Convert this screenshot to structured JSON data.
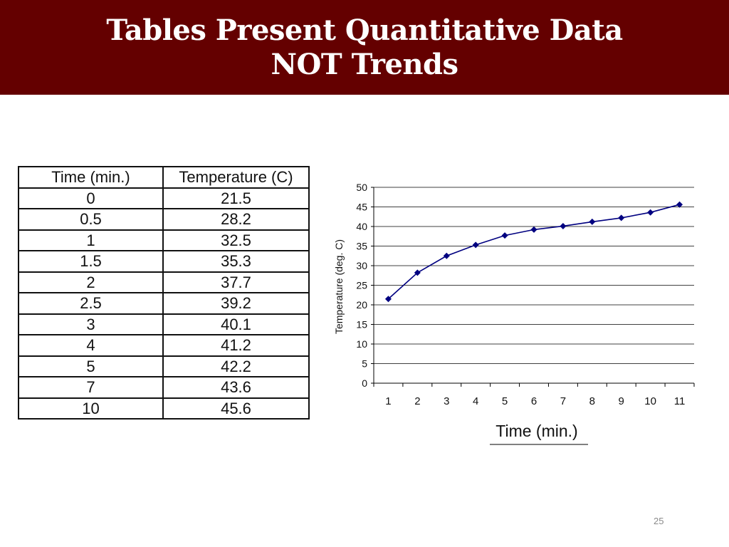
{
  "slide": {
    "title_line1": "Tables Present Quantitative Data",
    "title_line2": "NOT Trends",
    "page_number": "25",
    "colors": {
      "title_bar": "#640000",
      "series": "#000080"
    }
  },
  "table": {
    "headers": [
      "Time (min.)",
      "Temperature (C)"
    ],
    "rows": [
      [
        "0",
        "21.5"
      ],
      [
        "0.5",
        "28.2"
      ],
      [
        "1",
        "32.5"
      ],
      [
        "1.5",
        "35.3"
      ],
      [
        "2",
        "37.7"
      ],
      [
        "2.5",
        "39.2"
      ],
      [
        "3",
        "40.1"
      ],
      [
        "4",
        "41.2"
      ],
      [
        "5",
        "42.2"
      ],
      [
        "7",
        "43.6"
      ],
      [
        "10",
        "45.6"
      ]
    ]
  },
  "chart_data": {
    "type": "line",
    "title": "",
    "xlabel": "Time (min.)",
    "ylabel": "Temperature (deg. C)",
    "categories": [
      "1",
      "2",
      "3",
      "4",
      "5",
      "6",
      "7",
      "8",
      "9",
      "10",
      "11"
    ],
    "series": [
      {
        "values": [
          21.5,
          28.2,
          32.5,
          35.3,
          37.7,
          39.2,
          40.1,
          41.2,
          42.2,
          43.6,
          45.6
        ]
      }
    ],
    "ylim": [
      0,
      50
    ],
    "yticks": [
      0,
      5,
      10,
      15,
      20,
      25,
      30,
      35,
      40,
      45,
      50
    ],
    "grid": true,
    "marker": "diamond",
    "color": "#000080"
  }
}
